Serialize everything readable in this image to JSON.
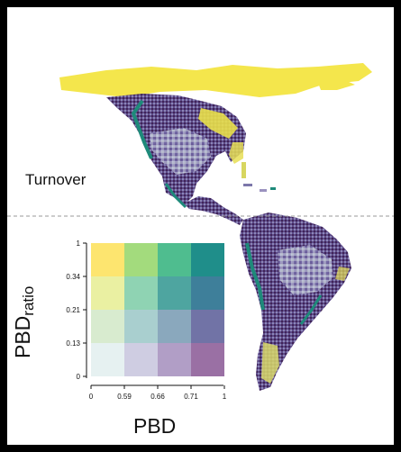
{
  "region_label": "Turnover",
  "legend": {
    "x_title": "PBD",
    "y_title_main": "PBD",
    "y_title_sub": "ratio",
    "x_ticks": [
      "0",
      "0.59",
      "0.66",
      "0.71",
      "1"
    ],
    "y_ticks": [
      "1",
      "0.34",
      "0.21",
      "0.13",
      "0"
    ],
    "grid_colors": [
      [
        "#fde56f",
        "#a3db7d",
        "#4fbd8f",
        "#1f8e8a"
      ],
      [
        "#eaf0a2",
        "#8fd3b3",
        "#4ea5a0",
        "#3e7f9a"
      ],
      [
        "#d8ebcf",
        "#a9cfcf",
        "#8aa8bd",
        "#7173a6"
      ],
      [
        "#e6f1f1",
        "#cfcde2",
        "#b19ec6",
        "#9a70a4"
      ]
    ]
  },
  "colors": {
    "yellow": "#f4e64c",
    "dark_purple": "#45225c",
    "teal": "#1e8a7a",
    "mid_purple": "#6d5a97",
    "pale": "#c8d6df",
    "divider": "#9a9a9a"
  }
}
